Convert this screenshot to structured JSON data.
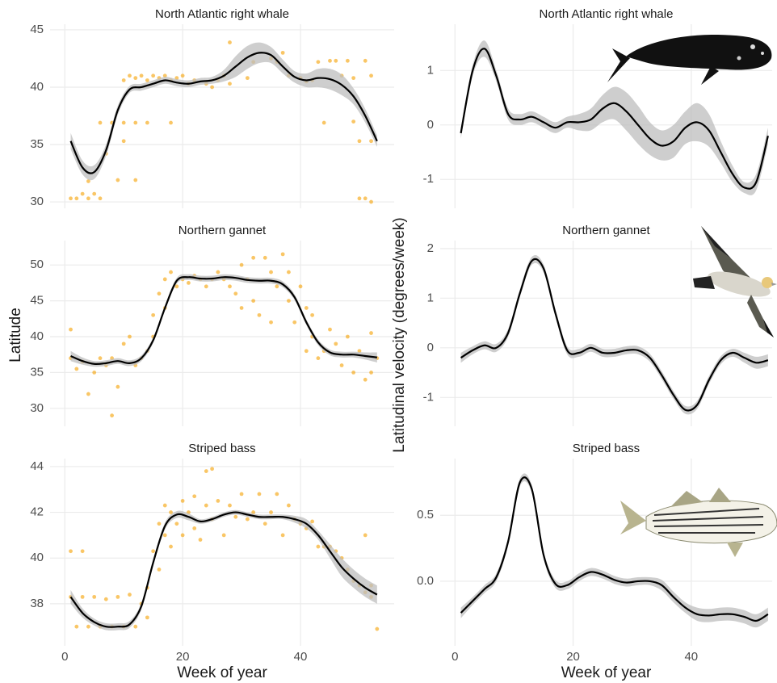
{
  "chart_data": [
    {
      "type": "scatter",
      "title": "North Atlantic right whale",
      "xlim": [
        -2.5,
        55.9
      ],
      "ylim": [
        29.44,
        45.49
      ],
      "xticks": [
        0,
        20,
        40
      ],
      "yticks": [
        30,
        35,
        40,
        45
      ],
      "grid": true,
      "points": {
        "color": "#f5a000",
        "x": [
          1,
          2,
          3,
          4,
          5,
          6,
          4,
          7,
          6,
          8,
          10,
          12,
          14,
          9,
          12,
          10,
          10,
          11,
          12,
          13,
          14,
          15,
          16,
          17,
          18,
          19,
          20,
          18,
          21,
          22,
          24,
          25,
          26,
          27,
          28,
          28,
          31,
          32,
          35,
          36,
          37,
          38,
          40,
          41,
          42,
          43,
          44,
          45,
          46,
          47,
          48,
          49,
          50,
          51,
          50,
          51,
          52,
          52,
          49,
          52
        ],
        "y": [
          30.3,
          30.3,
          30.7,
          30.3,
          30.7,
          30.3,
          31.8,
          34.2,
          36.9,
          36.9,
          36.9,
          36.9,
          36.9,
          31.9,
          31.9,
          35.3,
          40.6,
          41.0,
          40.8,
          41.0,
          40.6,
          41.0,
          40.8,
          41.0,
          40.6,
          40.8,
          41.0,
          36.9,
          40.3,
          40.6,
          40.3,
          40.0,
          40.6,
          41.0,
          43.9,
          40.3,
          40.8,
          42.2,
          42.5,
          42.2,
          43.0,
          41.0,
          40.8,
          40.5,
          40.6,
          42.2,
          36.9,
          42.3,
          42.3,
          41.0,
          42.3,
          40.8,
          35.3,
          42.3,
          30.3,
          30.3,
          30.0,
          35.3,
          37.0,
          41.0
        ]
      },
      "x": [
        1,
        3,
        5,
        7,
        9,
        11,
        13,
        15,
        17,
        19,
        21,
        23,
        25,
        27,
        29,
        31,
        33,
        35,
        37,
        39,
        41,
        43,
        45,
        47,
        49,
        51,
        53
      ],
      "line": {
        "color": "#000000",
        "band_color": "#bdbdbd",
        "values": [
          35.3,
          33.0,
          32.6,
          34.5,
          38.0,
          39.8,
          40.0,
          40.3,
          40.6,
          40.4,
          40.3,
          40.5,
          40.6,
          41.0,
          41.8,
          42.6,
          43.0,
          42.8,
          41.8,
          40.9,
          40.6,
          40.8,
          40.7,
          40.2,
          39.2,
          37.5,
          35.3
        ],
        "lower": [
          34.6,
          32.4,
          32.0,
          34.0,
          37.6,
          39.5,
          39.7,
          40.0,
          40.3,
          40.1,
          40.0,
          40.2,
          40.3,
          40.5,
          40.9,
          41.6,
          42.1,
          42.1,
          41.2,
          40.4,
          40.0,
          40.0,
          39.8,
          39.3,
          38.5,
          36.9,
          34.8
        ],
        "upper": [
          36.0,
          33.6,
          33.2,
          35.0,
          38.4,
          40.1,
          40.3,
          40.6,
          40.9,
          40.7,
          40.6,
          40.8,
          40.9,
          41.5,
          42.7,
          43.6,
          43.9,
          43.5,
          42.4,
          41.4,
          41.2,
          41.6,
          41.6,
          41.1,
          39.9,
          38.1,
          35.8
        ]
      }
    },
    {
      "type": "scatter",
      "title": "Northern gannet",
      "ylabel": "Latitude",
      "xlim": [
        -2.5,
        55.9
      ],
      "ylim": [
        27.5,
        53.4
      ],
      "xticks": [
        0,
        20,
        40
      ],
      "yticks": [
        30,
        35,
        40,
        45,
        50
      ],
      "grid": true,
      "points": {
        "color": "#f5a000",
        "x": [
          1,
          1,
          2,
          3,
          4,
          5,
          6,
          7,
          8,
          8,
          9,
          10,
          11,
          12,
          13,
          14,
          15,
          15,
          16,
          17,
          17,
          18,
          19,
          20,
          21,
          22,
          23,
          24,
          25,
          26,
          27,
          28,
          29,
          30,
          30,
          31,
          32,
          32,
          33,
          34,
          35,
          35,
          36,
          37,
          38,
          38,
          39,
          40,
          41,
          41,
          42,
          42,
          43,
          44,
          45,
          46,
          47,
          48,
          49,
          50,
          51,
          52,
          53,
          52
        ],
        "y": [
          41,
          37,
          35.5,
          36.5,
          32,
          35,
          37,
          36,
          29,
          37,
          33,
          39,
          40,
          36,
          37,
          38,
          40,
          43,
          46,
          48,
          44,
          49,
          47,
          48,
          47.5,
          48.5,
          48,
          47,
          48,
          49,
          48,
          47,
          46,
          50,
          44,
          48,
          51,
          45,
          43,
          51,
          49,
          42,
          47,
          51.5,
          45,
          49,
          42,
          47,
          44,
          38,
          40,
          43,
          37,
          38,
          41,
          39,
          36,
          40,
          35,
          38,
          34,
          40.5,
          37,
          35
        ]
      },
      "x": [
        1,
        3,
        5,
        7,
        9,
        11,
        13,
        15,
        17,
        19,
        21,
        23,
        25,
        27,
        29,
        31,
        33,
        35,
        37,
        39,
        41,
        43,
        45,
        47,
        49,
        51,
        53
      ],
      "line": {
        "color": "#000000",
        "band_color": "#bdbdbd",
        "values": [
          37.3,
          36.6,
          36.2,
          36.3,
          36.6,
          36.3,
          37.0,
          39.5,
          44.0,
          47.8,
          48.3,
          48.1,
          48.1,
          48.3,
          48.2,
          47.9,
          47.8,
          47.8,
          47.3,
          45.5,
          42.0,
          39.2,
          37.8,
          37.5,
          37.5,
          37.3,
          37.1
        ],
        "lower": [
          36.6,
          36.1,
          35.8,
          35.9,
          36.2,
          35.9,
          36.6,
          39.1,
          43.6,
          47.4,
          47.9,
          47.7,
          47.7,
          47.9,
          47.8,
          47.5,
          47.4,
          47.4,
          46.9,
          45.1,
          41.6,
          38.8,
          37.4,
          37.1,
          37.1,
          36.8,
          36.4
        ],
        "upper": [
          38.0,
          37.1,
          36.6,
          36.7,
          37.0,
          36.7,
          37.4,
          39.9,
          44.4,
          48.2,
          48.7,
          48.5,
          48.5,
          48.7,
          48.6,
          48.3,
          48.2,
          48.2,
          47.7,
          45.9,
          42.4,
          39.6,
          38.2,
          37.9,
          37.9,
          37.8,
          37.8
        ]
      }
    },
    {
      "type": "scatter",
      "title": "Striped bass",
      "xlabel": "Week of year",
      "xlim": [
        -2.5,
        55.9
      ],
      "ylim": [
        36.16,
        44.35
      ],
      "xticks": [
        0,
        20,
        40
      ],
      "yticks": [
        38,
        40,
        42,
        44
      ],
      "grid": true,
      "points": {
        "color": "#f5a000",
        "x": [
          1,
          1,
          2,
          3,
          3,
          4,
          5,
          6,
          7,
          8,
          9,
          10,
          11,
          12,
          13,
          14,
          14,
          15,
          16,
          16,
          17,
          17,
          18,
          18,
          19,
          20,
          20,
          21,
          22,
          22,
          23,
          24,
          24,
          25,
          25,
          26,
          27,
          28,
          29,
          30,
          31,
          32,
          33,
          34,
          35,
          36,
          37,
          38,
          39,
          40,
          41,
          42,
          43,
          44,
          45,
          46,
          47,
          48,
          49,
          50,
          51,
          51,
          52,
          53,
          52
        ],
        "y": [
          38.3,
          40.3,
          37.0,
          38.3,
          40.3,
          37.0,
          38.3,
          37.0,
          38.2,
          37.0,
          38.3,
          37.0,
          38.4,
          37.0,
          38.0,
          38.7,
          37.4,
          40.3,
          41.5,
          39.5,
          42.3,
          41.0,
          40.5,
          42.0,
          41.5,
          42.5,
          41.0,
          42.0,
          41.3,
          42.7,
          40.8,
          42.3,
          43.8,
          43.9,
          41.7,
          42.5,
          41.0,
          42.3,
          41.8,
          42.8,
          41.7,
          42.0,
          42.8,
          41.5,
          42.0,
          42.8,
          41.0,
          42.3,
          41.7,
          41.5,
          41.3,
          41.6,
          40.5,
          40.5,
          40.5,
          40.3,
          40.0,
          39.5,
          39.0,
          38.8,
          38.5,
          41.0,
          38.3,
          36.9,
          38.8
        ]
      },
      "x": [
        1,
        3,
        5,
        7,
        9,
        11,
        13,
        15,
        17,
        19,
        21,
        23,
        25,
        27,
        29,
        31,
        33,
        35,
        37,
        39,
        41,
        43,
        45,
        47,
        49,
        51,
        53
      ],
      "line": {
        "color": "#000000",
        "band_color": "#bdbdbd",
        "values": [
          38.3,
          37.6,
          37.2,
          37.0,
          37.0,
          37.1,
          37.9,
          39.8,
          41.4,
          41.9,
          41.8,
          41.6,
          41.7,
          41.9,
          42.0,
          41.9,
          41.8,
          41.8,
          41.8,
          41.7,
          41.5,
          41.0,
          40.3,
          39.6,
          39.1,
          38.7,
          38.4
        ],
        "lower": [
          38.0,
          37.4,
          37.05,
          36.85,
          36.85,
          36.95,
          37.75,
          39.65,
          41.25,
          41.75,
          41.65,
          41.5,
          41.6,
          41.8,
          41.9,
          41.8,
          41.7,
          41.7,
          41.7,
          41.55,
          41.3,
          40.8,
          40.0,
          39.2,
          38.7,
          38.3,
          38.0
        ],
        "upper": [
          38.6,
          37.8,
          37.35,
          37.15,
          37.15,
          37.25,
          38.05,
          39.95,
          41.55,
          42.05,
          41.95,
          41.7,
          41.8,
          42.0,
          42.1,
          42.0,
          41.9,
          41.9,
          41.9,
          41.85,
          41.7,
          41.2,
          40.6,
          40.0,
          39.5,
          39.1,
          38.8
        ]
      }
    },
    {
      "type": "line",
      "title": "North Atlantic right whale",
      "xlim": [
        -2.5,
        53.7
      ],
      "ylim": [
        -1.53,
        1.85
      ],
      "xticks": [
        0,
        20,
        40
      ],
      "yticks": [
        -1,
        0,
        1
      ],
      "grid": true,
      "x": [
        1,
        3,
        5,
        7,
        9,
        11,
        13,
        15,
        17,
        19,
        21,
        23,
        25,
        27,
        29,
        31,
        33,
        35,
        37,
        39,
        41,
        43,
        45,
        47,
        49,
        51,
        53
      ],
      "line": {
        "color": "#000000",
        "band_color": "#bdbdbd",
        "values": [
          -0.15,
          1.0,
          1.4,
          0.9,
          0.2,
          0.1,
          0.15,
          0.05,
          -0.05,
          0.05,
          0.05,
          0.1,
          0.3,
          0.4,
          0.25,
          0.0,
          -0.25,
          -0.38,
          -0.3,
          -0.05,
          0.05,
          -0.1,
          -0.5,
          -0.9,
          -1.15,
          -1.05,
          -0.2
        ],
        "lower": [
          -0.25,
          0.9,
          1.25,
          0.8,
          0.1,
          0.0,
          0.05,
          -0.05,
          -0.15,
          -0.05,
          -0.1,
          -0.1,
          0.05,
          0.1,
          -0.1,
          -0.35,
          -0.55,
          -0.65,
          -0.6,
          -0.35,
          -0.3,
          -0.4,
          -0.7,
          -1.05,
          -1.25,
          -1.2,
          -0.35
        ],
        "upper": [
          -0.05,
          1.1,
          1.55,
          1.0,
          0.3,
          0.2,
          0.25,
          0.15,
          0.05,
          0.15,
          0.2,
          0.3,
          0.55,
          0.7,
          0.6,
          0.35,
          0.05,
          -0.1,
          0.0,
          0.25,
          0.4,
          0.2,
          -0.3,
          -0.75,
          -1.05,
          -0.9,
          -0.05
        ]
      }
    },
    {
      "type": "line",
      "title": "Northern gannet",
      "ylabel": "Latitudinal velocity (degrees/week)",
      "xlim": [
        -2.5,
        53.7
      ],
      "ylim": [
        -1.58,
        2.16
      ],
      "xticks": [
        0,
        20,
        40
      ],
      "yticks": [
        -1,
        0,
        1,
        2
      ],
      "grid": true,
      "x": [
        1,
        3,
        5,
        7,
        9,
        11,
        13,
        15,
        17,
        19,
        21,
        23,
        25,
        27,
        29,
        31,
        33,
        35,
        37,
        39,
        41,
        43,
        45,
        47,
        49,
        51,
        53
      ],
      "line": {
        "color": "#000000",
        "band_color": "#bdbdbd",
        "values": [
          -0.2,
          -0.05,
          0.05,
          0.0,
          0.3,
          1.1,
          1.75,
          1.6,
          0.7,
          -0.05,
          -0.1,
          0.0,
          -0.1,
          -0.1,
          -0.05,
          -0.05,
          -0.2,
          -0.55,
          -0.95,
          -1.25,
          -1.15,
          -0.65,
          -0.25,
          -0.1,
          -0.2,
          -0.3,
          -0.25
        ],
        "lower": [
          -0.3,
          -0.13,
          -0.03,
          -0.08,
          0.22,
          1.02,
          1.67,
          1.52,
          0.62,
          -0.13,
          -0.18,
          -0.08,
          -0.18,
          -0.18,
          -0.13,
          -0.13,
          -0.28,
          -0.63,
          -1.03,
          -1.33,
          -1.23,
          -0.73,
          -0.33,
          -0.18,
          -0.3,
          -0.42,
          -0.37
        ],
        "upper": [
          -0.1,
          0.03,
          0.13,
          0.08,
          0.38,
          1.18,
          1.83,
          1.68,
          0.78,
          0.03,
          -0.02,
          0.08,
          -0.02,
          -0.02,
          0.03,
          0.03,
          -0.12,
          -0.47,
          -0.87,
          -1.17,
          -1.07,
          -0.57,
          -0.17,
          -0.02,
          -0.1,
          -0.18,
          -0.13
        ]
      }
    },
    {
      "type": "line",
      "title": "Striped bass",
      "xlabel": "Week of year",
      "xlim": [
        -2.5,
        53.7
      ],
      "ylim": [
        -0.49,
        0.93
      ],
      "xticks": [
        0,
        20,
        40
      ],
      "yticks": [
        {
          "value": 0,
          "label": "0.0"
        },
        0.5
      ],
      "grid": true,
      "x": [
        1,
        3,
        5,
        7,
        9,
        11,
        13,
        15,
        17,
        19,
        21,
        23,
        25,
        27,
        29,
        31,
        33,
        35,
        37,
        39,
        41,
        43,
        45,
        47,
        49,
        51,
        53
      ],
      "line": {
        "color": "#000000",
        "band_color": "#bdbdbd",
        "values": [
          -0.24,
          -0.15,
          -0.06,
          0.03,
          0.3,
          0.75,
          0.7,
          0.2,
          -0.02,
          -0.03,
          0.03,
          0.07,
          0.05,
          0.01,
          -0.01,
          0.0,
          0.0,
          -0.03,
          -0.12,
          -0.2,
          -0.25,
          -0.26,
          -0.25,
          -0.25,
          -0.27,
          -0.3,
          -0.25
        ],
        "lower": [
          -0.28,
          -0.18,
          -0.09,
          0.0,
          0.27,
          0.72,
          0.67,
          0.17,
          -0.05,
          -0.06,
          0.0,
          0.04,
          0.02,
          -0.02,
          -0.04,
          -0.03,
          -0.03,
          -0.07,
          -0.16,
          -0.24,
          -0.3,
          -0.31,
          -0.3,
          -0.3,
          -0.32,
          -0.35,
          -0.3
        ],
        "upper": [
          -0.2,
          -0.12,
          -0.03,
          0.06,
          0.33,
          0.78,
          0.73,
          0.23,
          0.01,
          0.0,
          0.06,
          0.1,
          0.08,
          0.04,
          0.02,
          0.03,
          0.03,
          0.01,
          -0.08,
          -0.16,
          -0.2,
          -0.21,
          -0.2,
          -0.2,
          -0.22,
          -0.25,
          -0.2
        ]
      }
    }
  ]
}
